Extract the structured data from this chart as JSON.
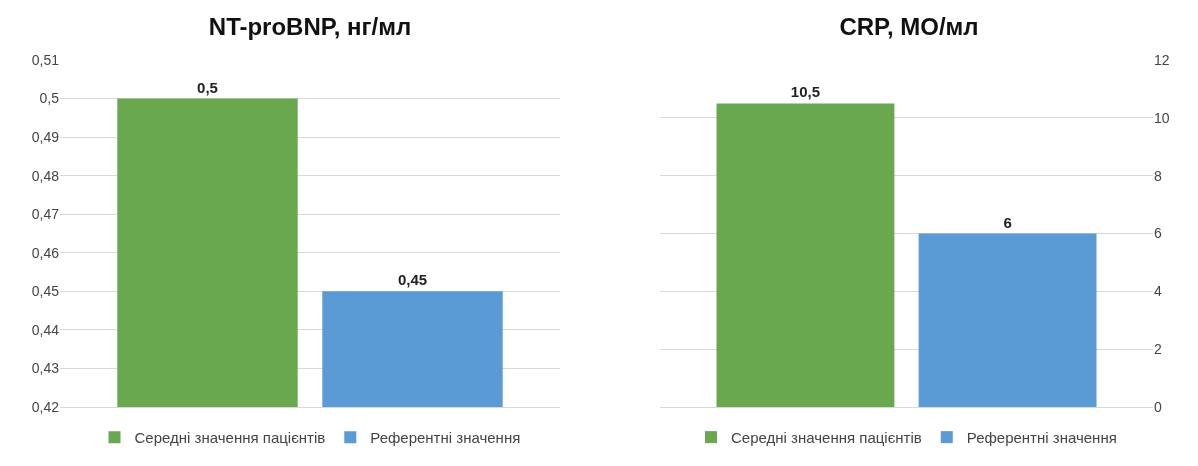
{
  "chart_data": [
    {
      "type": "bar",
      "title": "NT-proBNP, нг/мл",
      "categories": [
        null
      ],
      "ylim": [
        0.42,
        0.51
      ],
      "yticks": [
        {
          "value": 0.42,
          "label": "0,42"
        },
        {
          "value": 0.43,
          "label": "0,43"
        },
        {
          "value": 0.44,
          "label": "0,44"
        },
        {
          "value": 0.45,
          "label": "0,45"
        },
        {
          "value": 0.46,
          "label": "0,46"
        },
        {
          "value": 0.47,
          "label": "0,47"
        },
        {
          "value": 0.48,
          "label": "0,48"
        },
        {
          "value": 0.49,
          "label": "0,49"
        },
        {
          "value": 0.5,
          "label": "0,5"
        },
        {
          "value": 0.51,
          "label": "0,51"
        }
      ],
      "grid": "y",
      "legend": "bottom",
      "series": [
        {
          "name": "Середні значення пацієнтів",
          "color": "#6aa84f",
          "values": [
            0.5
          ],
          "value_labels": [
            "0,5"
          ]
        },
        {
          "name": "Референтні значення",
          "color": "#5b9bd5",
          "values": [
            0.45
          ],
          "value_labels": [
            "0,45"
          ]
        }
      ]
    },
    {
      "type": "bar",
      "title": "CRP, МО/мл",
      "categories": [
        null
      ],
      "ylim": [
        0,
        12
      ],
      "yticks": [
        0,
        2,
        4,
        6,
        8,
        10,
        12
      ],
      "grid": "y",
      "legend": "bottom",
      "series": [
        {
          "name": "Середні значення пацієнтів",
          "color": "#6aa84f",
          "values": [
            10.5
          ],
          "value_labels": [
            "10,5"
          ]
        },
        {
          "name": "Референтні значення",
          "color": "#5b9bd5",
          "values": [
            6
          ],
          "value_labels": [
            "6"
          ]
        }
      ]
    }
  ]
}
